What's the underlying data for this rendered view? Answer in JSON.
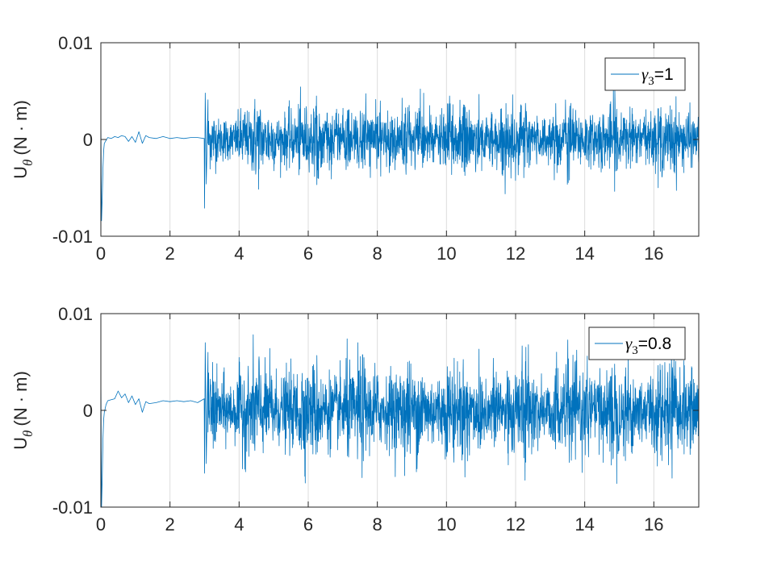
{
  "colors": {
    "series": "#0072BD",
    "axis": "#262626",
    "grid": "#dcdcdc"
  },
  "chart_data": [
    {
      "type": "line",
      "title": "",
      "xlabel": "",
      "ylabel": {
        "main": "U",
        "sub": "θ",
        "unit": "(N · m)"
      },
      "xlim": [
        0,
        17.3
      ],
      "ylim": [
        -0.01,
        0.01
      ],
      "xticks": [
        0,
        2,
        4,
        6,
        8,
        10,
        12,
        14,
        16
      ],
      "xtick_labels": [
        "0",
        "2",
        "4",
        "6",
        "8",
        "10",
        "12",
        "14",
        "16"
      ],
      "yticks": [
        -0.01,
        0,
        0.01
      ],
      "ytick_labels": [
        "-0.01",
        "0",
        "0.01"
      ],
      "grid": "vertical",
      "legend": {
        "position": "top-right",
        "entry": {
          "symbol": "γ",
          "sub": "3",
          "rest": "=1"
        }
      },
      "series": [
        {
          "name": "γ3=1",
          "x": [
            0,
            0.02,
            0.04,
            0.06,
            0.08,
            0.1,
            0.15,
            0.2,
            0.3,
            0.4,
            0.5,
            0.6,
            0.7,
            0.8,
            0.9,
            1.0,
            1.1,
            1.2,
            1.3,
            1.4,
            1.6,
            1.8,
            2.0,
            2.2,
            2.4,
            2.6,
            2.8,
            2.99,
            3.0,
            3.02,
            3.05,
            3.1
          ],
          "y": [
            0.0025,
            -0.0084,
            -0.006,
            -0.003,
            -0.0012,
            -0.0004,
            -0.0001,
            0.0002,
            0.0001,
            0.0003,
            0.0002,
            0.0004,
            0.0003,
            -0.0002,
            0.0003,
            -0.0003,
            0.0008,
            -0.0004,
            0.0004,
            0.0002,
            0.0001,
            0.0003,
            0.0001,
            0.0002,
            0.0001,
            0.0002,
            0.0002,
            0.0001,
            -0.0071,
            0.0048,
            -0.0046,
            0.0041
          ],
          "noise": {
            "x_start": 3.1,
            "x_end": 17.3,
            "step": 0.006,
            "envelope_x": [
              3.1,
              4.0,
              4.5,
              5.0,
              6.0,
              7.0,
              8.0,
              9.0,
              10.0,
              11.0,
              11.5,
              12.0,
              12.5,
              13.0,
              14.0,
              15.0,
              16.0,
              17.3
            ],
            "envelope_y": [
              0.0042,
              0.0048,
              0.0062,
              0.0053,
              0.0055,
              0.0052,
              0.0054,
              0.0055,
              0.0057,
              0.0056,
              0.006,
              0.0055,
              0.0058,
              0.005,
              0.0056,
              0.0054,
              0.0055,
              0.0052
            ]
          }
        }
      ]
    },
    {
      "type": "line",
      "title": "",
      "xlabel": "",
      "ylabel": {
        "main": "U",
        "sub": "θ",
        "unit": "(N · m)"
      },
      "xlim": [
        0,
        17.3
      ],
      "ylim": [
        -0.01,
        0.01
      ],
      "xticks": [
        0,
        2,
        4,
        6,
        8,
        10,
        12,
        14,
        16
      ],
      "xtick_labels": [
        "0",
        "2",
        "4",
        "6",
        "8",
        "10",
        "12",
        "14",
        "16"
      ],
      "yticks": [
        -0.01,
        0,
        0.01
      ],
      "ytick_labels": [
        "-0.01",
        "0",
        "0.01"
      ],
      "grid": "vertical",
      "legend": {
        "position": "top-right",
        "entry": {
          "symbol": "γ",
          "sub": "3",
          "rest": "=0.8"
        }
      },
      "series": [
        {
          "name": "γ3=0.8",
          "x": [
            0,
            0.02,
            0.04,
            0.06,
            0.08,
            0.1,
            0.15,
            0.2,
            0.3,
            0.4,
            0.5,
            0.6,
            0.7,
            0.8,
            0.9,
            1.0,
            1.1,
            1.2,
            1.3,
            1.4,
            1.6,
            1.8,
            2.0,
            2.2,
            2.4,
            2.6,
            2.8,
            2.99,
            3.0,
            3.02,
            3.05,
            3.1
          ],
          "y": [
            0.0042,
            -0.01,
            -0.007,
            -0.003,
            -0.001,
            -0.0002,
            0.0006,
            0.001,
            0.0011,
            0.0012,
            0.002,
            0.0013,
            0.0017,
            0.0008,
            0.0015,
            0.0006,
            0.0012,
            -0.0002,
            0.0009,
            0.0007,
            0.0008,
            0.001,
            0.0009,
            0.001,
            0.0009,
            0.001,
            0.0008,
            0.0012,
            -0.0065,
            0.007,
            -0.0055,
            0.006
          ],
          "noise": {
            "x_start": 3.1,
            "x_end": 17.3,
            "step": 0.006,
            "envelope_x": [
              3.1,
              4.0,
              4.5,
              5.0,
              6.0,
              7.0,
              8.0,
              9.0,
              10.0,
              11.0,
              11.5,
              12.0,
              12.5,
              13.0,
              14.0,
              15.0,
              16.0,
              17.3
            ],
            "envelope_y": [
              0.006,
              0.0072,
              0.0085,
              0.0078,
              0.0075,
              0.008,
              0.0076,
              0.0078,
              0.008,
              0.0082,
              0.0085,
              0.008,
              0.0078,
              0.0072,
              0.0078,
              0.0076,
              0.008,
              0.0078
            ]
          }
        }
      ]
    }
  ]
}
